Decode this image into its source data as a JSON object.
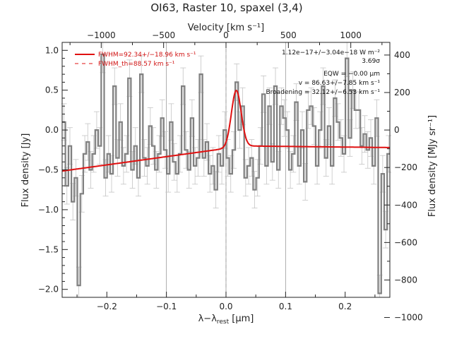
{
  "chart_data": {
    "type": "line",
    "title": "OI63, Raster 10, spaxel (3,4)",
    "xlabel": "λ−λ",
    "xlabel_sub": "rest",
    "xlabel_unit": " [μm]",
    "ylabel": "Flux density [Jy]",
    "ylabel_right": "Flux density [MJy sr⁻¹]",
    "top_axis_label": "Velocity [km s⁻¹]",
    "xlim": [
      -0.275,
      0.275
    ],
    "ylim": [
      -2.1,
      1.1
    ],
    "xticks": [
      -0.2,
      -0.1,
      0.0,
      0.1,
      0.2
    ],
    "xtick_labels": [
      "−0.2",
      "−0.1",
      "0.0",
      "0.1",
      "0.2"
    ],
    "yticks": [
      -2.0,
      -1.5,
      -1.0,
      -0.5,
      0.0,
      0.5,
      1.0
    ],
    "ytick_labels": [
      "−2.0",
      "−1.5",
      "−1.0",
      "−0.5",
      "0.0",
      "0.5",
      "1.0"
    ],
    "velocity_ticks": [
      -1000,
      -500,
      0,
      500,
      1000
    ],
    "velocity_tick_labels": [
      "−1000",
      "−500",
      "0",
      "500",
      "1000"
    ],
    "velocity_per_um": 4775,
    "right_ticks": [
      400,
      200,
      0,
      -200,
      -400,
      -600,
      -800,
      -1000
    ],
    "right_tick_labels": [
      "400",
      "200",
      "0",
      "−200",
      "−400",
      "−600",
      "−800",
      "−1000"
    ],
    "right_scale_per_jy": 425,
    "vertical_lines": [
      -0.1,
      0.0,
      0.1
    ],
    "rest_line": 0.0,
    "series": [
      {
        "name": "Data",
        "style": "step",
        "color": "#808080",
        "x": [
          -0.272,
          -0.267,
          -0.262,
          -0.257,
          -0.252,
          -0.247,
          -0.242,
          -0.237,
          -0.232,
          -0.227,
          -0.222,
          -0.217,
          -0.212,
          -0.207,
          -0.202,
          -0.197,
          -0.192,
          -0.187,
          -0.182,
          -0.177,
          -0.172,
          -0.167,
          -0.162,
          -0.157,
          -0.152,
          -0.147,
          -0.142,
          -0.137,
          -0.132,
          -0.127,
          -0.122,
          -0.117,
          -0.112,
          -0.107,
          -0.102,
          -0.097,
          -0.092,
          -0.087,
          -0.082,
          -0.077,
          -0.072,
          -0.067,
          -0.062,
          -0.057,
          -0.052,
          -0.047,
          -0.042,
          -0.037,
          -0.032,
          -0.027,
          -0.022,
          -0.017,
          -0.012,
          -0.007,
          -0.002,
          0.003,
          0.008,
          0.013,
          0.018,
          0.023,
          0.028,
          0.033,
          0.038,
          0.043,
          0.048,
          0.053,
          0.058,
          0.063,
          0.068,
          0.073,
          0.078,
          0.083,
          0.088,
          0.093,
          0.098,
          0.103,
          0.108,
          0.113,
          0.118,
          0.123,
          0.128,
          0.133,
          0.138,
          0.143,
          0.148,
          0.153,
          0.158,
          0.163,
          0.168,
          0.173,
          0.178,
          0.183,
          0.188,
          0.193,
          0.198,
          0.203,
          0.208,
          0.213,
          0.218,
          0.223,
          0.228,
          0.233,
          0.238,
          0.243,
          0.248,
          0.253,
          0.258,
          0.263,
          0.268,
          0.273
        ],
        "y": [
          0.1,
          -0.7,
          -0.2,
          -0.9,
          -0.6,
          -1.95,
          -0.8,
          -0.3,
          -0.15,
          -0.5,
          -0.3,
          0.0,
          -0.2,
          0.95,
          -0.6,
          -0.3,
          -0.55,
          0.55,
          -0.35,
          0.1,
          -0.45,
          -0.3,
          0.65,
          -0.5,
          -0.2,
          -0.6,
          0.7,
          -0.35,
          -0.45,
          0.05,
          -0.2,
          -0.5,
          -0.3,
          0.15,
          -0.25,
          -0.55,
          0.1,
          -0.4,
          -0.55,
          -0.3,
          0.55,
          -0.25,
          -0.5,
          0.15,
          -0.45,
          -0.35,
          0.7,
          -0.35,
          -0.15,
          -0.55,
          -0.45,
          -0.75,
          -0.3,
          -0.45,
          0.0,
          -0.35,
          -0.55,
          -0.25,
          0.6,
          0.0,
          0.3,
          -0.6,
          -0.45,
          -0.35,
          -0.75,
          -0.6,
          -0.2,
          0.45,
          -0.45,
          0.3,
          -0.4,
          0.55,
          -0.5,
          0.3,
          0.15,
          0.0,
          -0.5,
          -0.3,
          0.35,
          -0.45,
          0.0,
          -0.65,
          0.25,
          0.3,
          0.05,
          -0.45,
          0.0,
          0.55,
          -0.35,
          0.05,
          -0.45,
          0.4,
          0.1,
          -0.1,
          -0.3,
          0.9,
          -0.1,
          0.5,
          0.25,
          0.25,
          -0.2,
          -0.05,
          -0.25,
          -0.1,
          -0.45,
          0.15,
          -2.05,
          -0.55,
          -1.25,
          -0.3
        ]
      },
      {
        "name": "Fit",
        "style": "line",
        "color": "#e01010",
        "baseline_start": [
          -0.275,
          -0.515
        ],
        "baseline_knee": [
          0.03,
          -0.2
        ],
        "baseline_end": [
          0.275,
          -0.22
        ],
        "gauss_center": 0.0172,
        "gauss_amp": 0.71,
        "gauss_sigma": 0.0082
      }
    ],
    "errorbar_sigma": 0.23,
    "legend": {
      "placement": "top-left",
      "entries": [
        {
          "label": "FWHM=92.34+/−18.96 km s⁻¹",
          "style": "solid"
        },
        {
          "label": "FWHM_th=88.57 km s⁻¹",
          "style": "dashed"
        }
      ]
    },
    "annotations": [
      "1.12e−17+/−3.04e−18 W m⁻²",
      "3.69σ",
      "EQW = −0.00 μm",
      "v = 86.63+/−7.85 km s⁻¹",
      "Broadening = 32.12+/−6.53 km s⁻¹"
    ]
  }
}
